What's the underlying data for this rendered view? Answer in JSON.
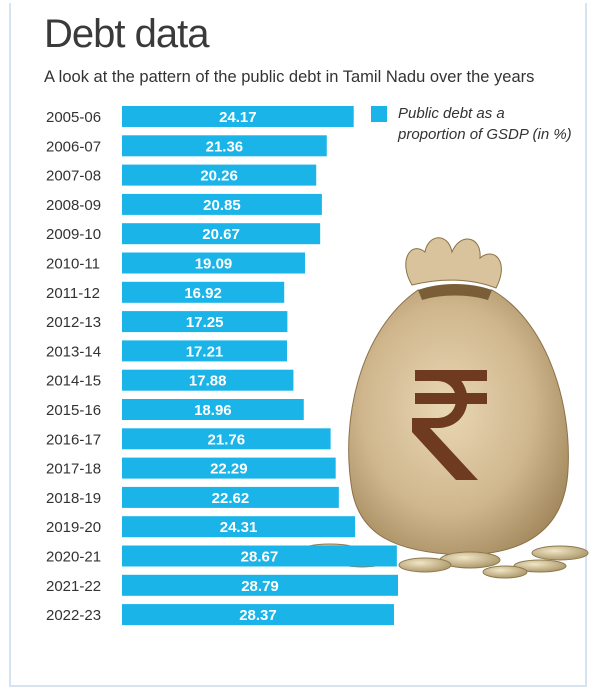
{
  "title": "Debt data",
  "subtitle": "A look at the pattern of the public debt in Tamil Nadu over the years",
  "legend": {
    "label": "Public debt as a proportion of GSDP (in %)"
  },
  "colors": {
    "bar": "#1ab4e8",
    "bar_text": "#ffffff",
    "label": "#333333"
  },
  "illustration": {
    "name": "money-bag-with-rupee-symbol-and-coins"
  },
  "chart_data": {
    "type": "bar",
    "orientation": "horizontal",
    "title": "Debt data",
    "subtitle": "A look at the pattern of the public debt in Tamil Nadu over the years",
    "categories": [
      "2005-06",
      "2006-07",
      "2007-08",
      "2008-09",
      "2009-10",
      "2010-11",
      "2011-12",
      "2012-13",
      "2013-14",
      "2014-15",
      "2015-16",
      "2016-17",
      "2017-18",
      "2018-19",
      "2019-20",
      "2020-21",
      "2021-22",
      "2022-23"
    ],
    "series": [
      {
        "name": "Public debt as a proportion of GSDP (in %)",
        "values": [
          24.17,
          21.36,
          20.26,
          20.85,
          20.67,
          19.09,
          16.92,
          17.25,
          17.21,
          17.88,
          18.96,
          21.76,
          22.29,
          22.62,
          24.31,
          28.67,
          28.79,
          28.37
        ]
      }
    ],
    "value_labels": [
      "24.17",
      "21.36",
      "20.26",
      "20.85",
      "20.67",
      "19.09",
      "16.92",
      "17.25",
      "17.21",
      "17.88",
      "18.96",
      "21.76",
      "22.29",
      "22.62",
      "24.31",
      "28.67",
      "28.79",
      "28.37"
    ],
    "xlim": [
      0,
      30
    ],
    "grid": false,
    "legend_position": "top-right"
  }
}
